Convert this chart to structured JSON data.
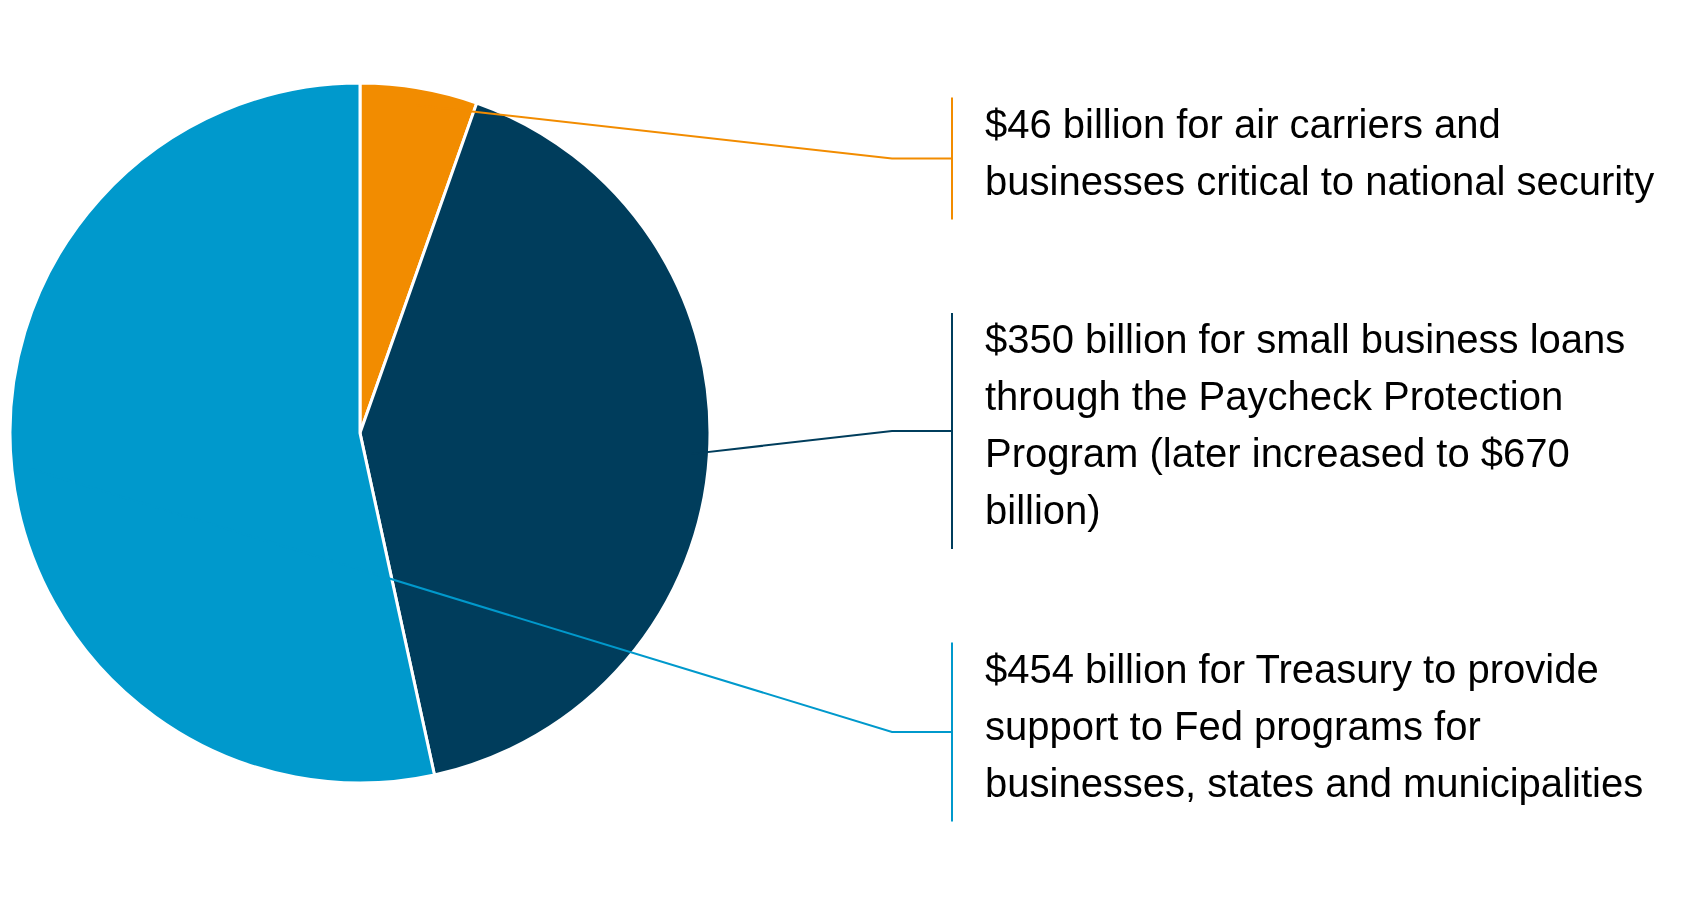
{
  "chart_data": {
    "type": "pie",
    "categories": [
      "$46 billion for air carriers and businesses critical to national security",
      "$350 billion for small business loans through the Paycheck Protection Program (later increased to $670 billion)",
      "$454 billion for Treasury to provide support to Fed programs for businesses, states and municipalities"
    ],
    "values": [
      46,
      350,
      454
    ],
    "colors": [
      "#f28c00",
      "#003d5c",
      "#0099cc"
    ]
  }
}
